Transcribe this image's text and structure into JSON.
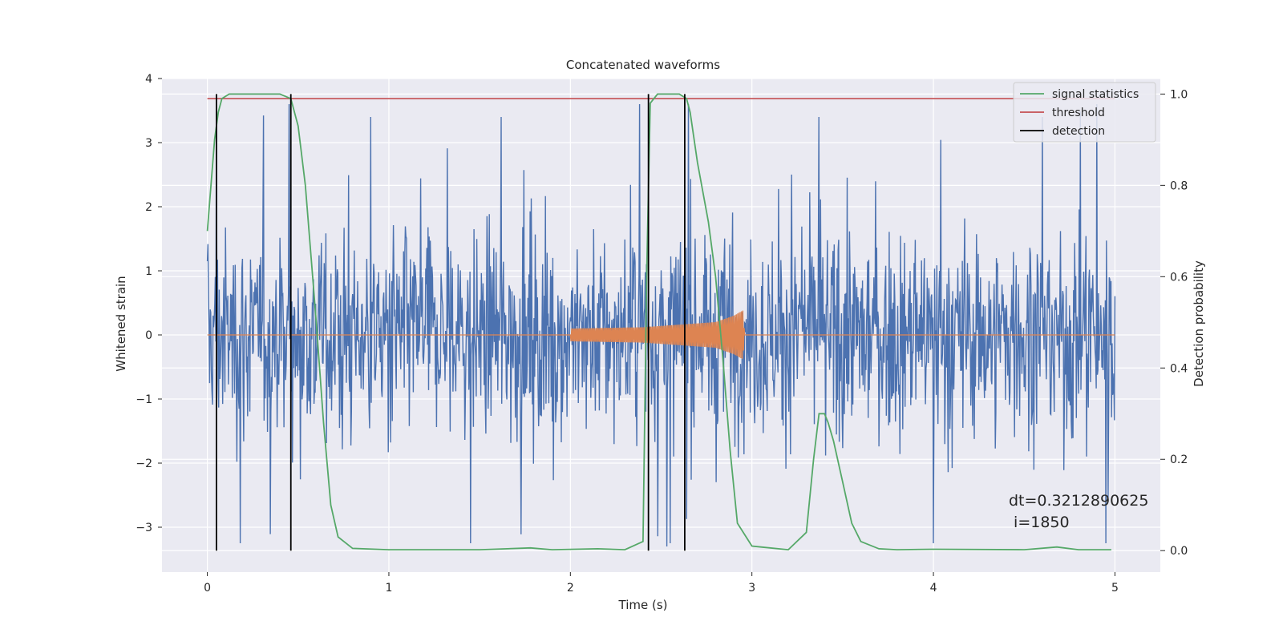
{
  "chart_data": {
    "type": "line",
    "title": "Concatenated waveforms",
    "xlabel": "Time (s)",
    "ylabel": "Whitened strain",
    "y2label": "Detection probability",
    "xlim": [
      -0.25,
      5.25
    ],
    "ylim": [
      -3.7,
      4.0
    ],
    "y2lim": [
      -0.047,
      1.034
    ],
    "xticks": [
      0,
      1,
      2,
      3,
      4,
      5
    ],
    "xtick_labels": [
      "0",
      "1",
      "2",
      "3",
      "4",
      "5"
    ],
    "yticks": [
      -3,
      -2,
      -1,
      0,
      1,
      2,
      3,
      4
    ],
    "ytick_labels": [
      "−3",
      "−2",
      "−1",
      "0",
      "1",
      "2",
      "3",
      "4"
    ],
    "y2ticks": [
      0.0,
      0.2,
      0.4,
      0.6,
      0.8,
      1.0
    ],
    "y2tick_labels": [
      "0.0",
      "0.2",
      "0.4",
      "0.6",
      "0.8",
      "1.0"
    ],
    "grid": true,
    "legend_position": "top-right",
    "legend": [
      "signal statistics",
      "threshold",
      "detection"
    ],
    "colors": {
      "strain": "#4c72b0",
      "injected_signal": "#dd8452",
      "signal_statistics": "#55a868",
      "threshold": "#c44e52",
      "detection": "#000000",
      "background": "#eaeaf2",
      "grid": "#ffffff"
    },
    "strain_series": {
      "x_range": [
        0,
        5
      ],
      "typical_amplitude": 1.0,
      "min": -3.3,
      "max": 3.6,
      "peak_x": [
        0.05,
        0.18,
        0.45,
        0.9,
        1.45,
        1.62,
        2.38,
        2.55,
        2.65,
        3.37,
        4.0,
        4.6,
        4.9,
        4.95
      ]
    },
    "injected_signal": {
      "points": [
        {
          "x": 0.0,
          "amp": 0.0
        },
        {
          "x": 2.0,
          "amp": 0.0
        },
        {
          "x": 2.0,
          "amp": 0.1
        },
        {
          "x": 2.4,
          "amp": 0.12
        },
        {
          "x": 2.8,
          "amp": 0.2
        },
        {
          "x": 2.9,
          "amp": 0.3
        },
        {
          "x": 2.95,
          "amp": 0.38
        },
        {
          "x": 2.96,
          "amp": 0.0
        },
        {
          "x": 5.0,
          "amp": 0.0
        }
      ]
    },
    "signal_statistics": {
      "x": [
        0.0,
        0.02,
        0.04,
        0.06,
        0.08,
        0.12,
        0.2,
        0.4,
        0.46,
        0.5,
        0.54,
        0.58,
        0.6,
        0.64,
        0.68,
        0.72,
        0.8,
        1.0,
        1.5,
        1.78,
        1.9,
        2.15,
        2.3,
        2.4,
        2.42,
        2.44,
        2.48,
        2.5,
        2.55,
        2.6,
        2.64,
        2.66,
        2.7,
        2.76,
        2.8,
        2.84,
        2.88,
        2.92,
        3.0,
        3.05,
        3.2,
        3.3,
        3.34,
        3.37,
        3.4,
        3.42,
        3.45,
        3.5,
        3.55,
        3.6,
        3.7,
        3.8,
        4.0,
        4.5,
        4.68,
        4.8,
        4.98
      ],
      "values": [
        0.7,
        0.8,
        0.9,
        0.96,
        0.99,
        1.0,
        1.0,
        1.0,
        0.99,
        0.93,
        0.8,
        0.6,
        0.5,
        0.28,
        0.1,
        0.03,
        0.005,
        0.002,
        0.002,
        0.006,
        0.002,
        0.004,
        0.002,
        0.02,
        0.6,
        0.98,
        1.0,
        1.0,
        1.0,
        1.0,
        0.99,
        0.96,
        0.85,
        0.72,
        0.6,
        0.42,
        0.22,
        0.06,
        0.01,
        0.008,
        0.002,
        0.04,
        0.2,
        0.3,
        0.3,
        0.28,
        0.24,
        0.15,
        0.06,
        0.02,
        0.004,
        0.002,
        0.003,
        0.002,
        0.008,
        0.002,
        0.002
      ]
    },
    "threshold": {
      "x": [
        0.0,
        5.0
      ],
      "value": 0.99
    },
    "detections": [
      0.05,
      0.46,
      2.43,
      2.63
    ],
    "annotation": "dt=0.3212890625\n i=1850"
  }
}
